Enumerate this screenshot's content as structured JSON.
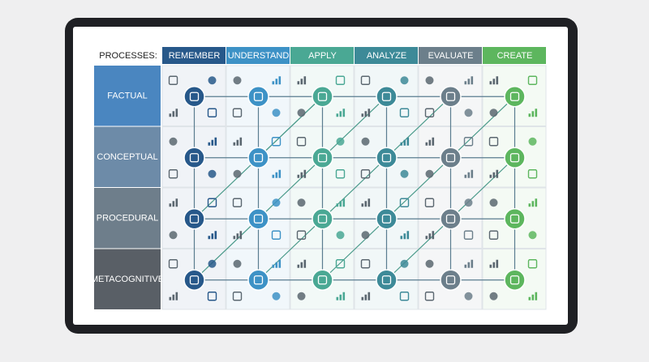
{
  "header": {
    "label": "PROCESSES:",
    "columns": [
      "REMEMBER",
      "UNDERSTAND",
      "APPLY",
      "ANALYZE",
      "EVALUATE",
      "CREATE"
    ]
  },
  "rows": [
    "FACTUAL",
    "CONCEPTUAL",
    "PROCEDURAL",
    "METACOGNITIVE"
  ]
}
